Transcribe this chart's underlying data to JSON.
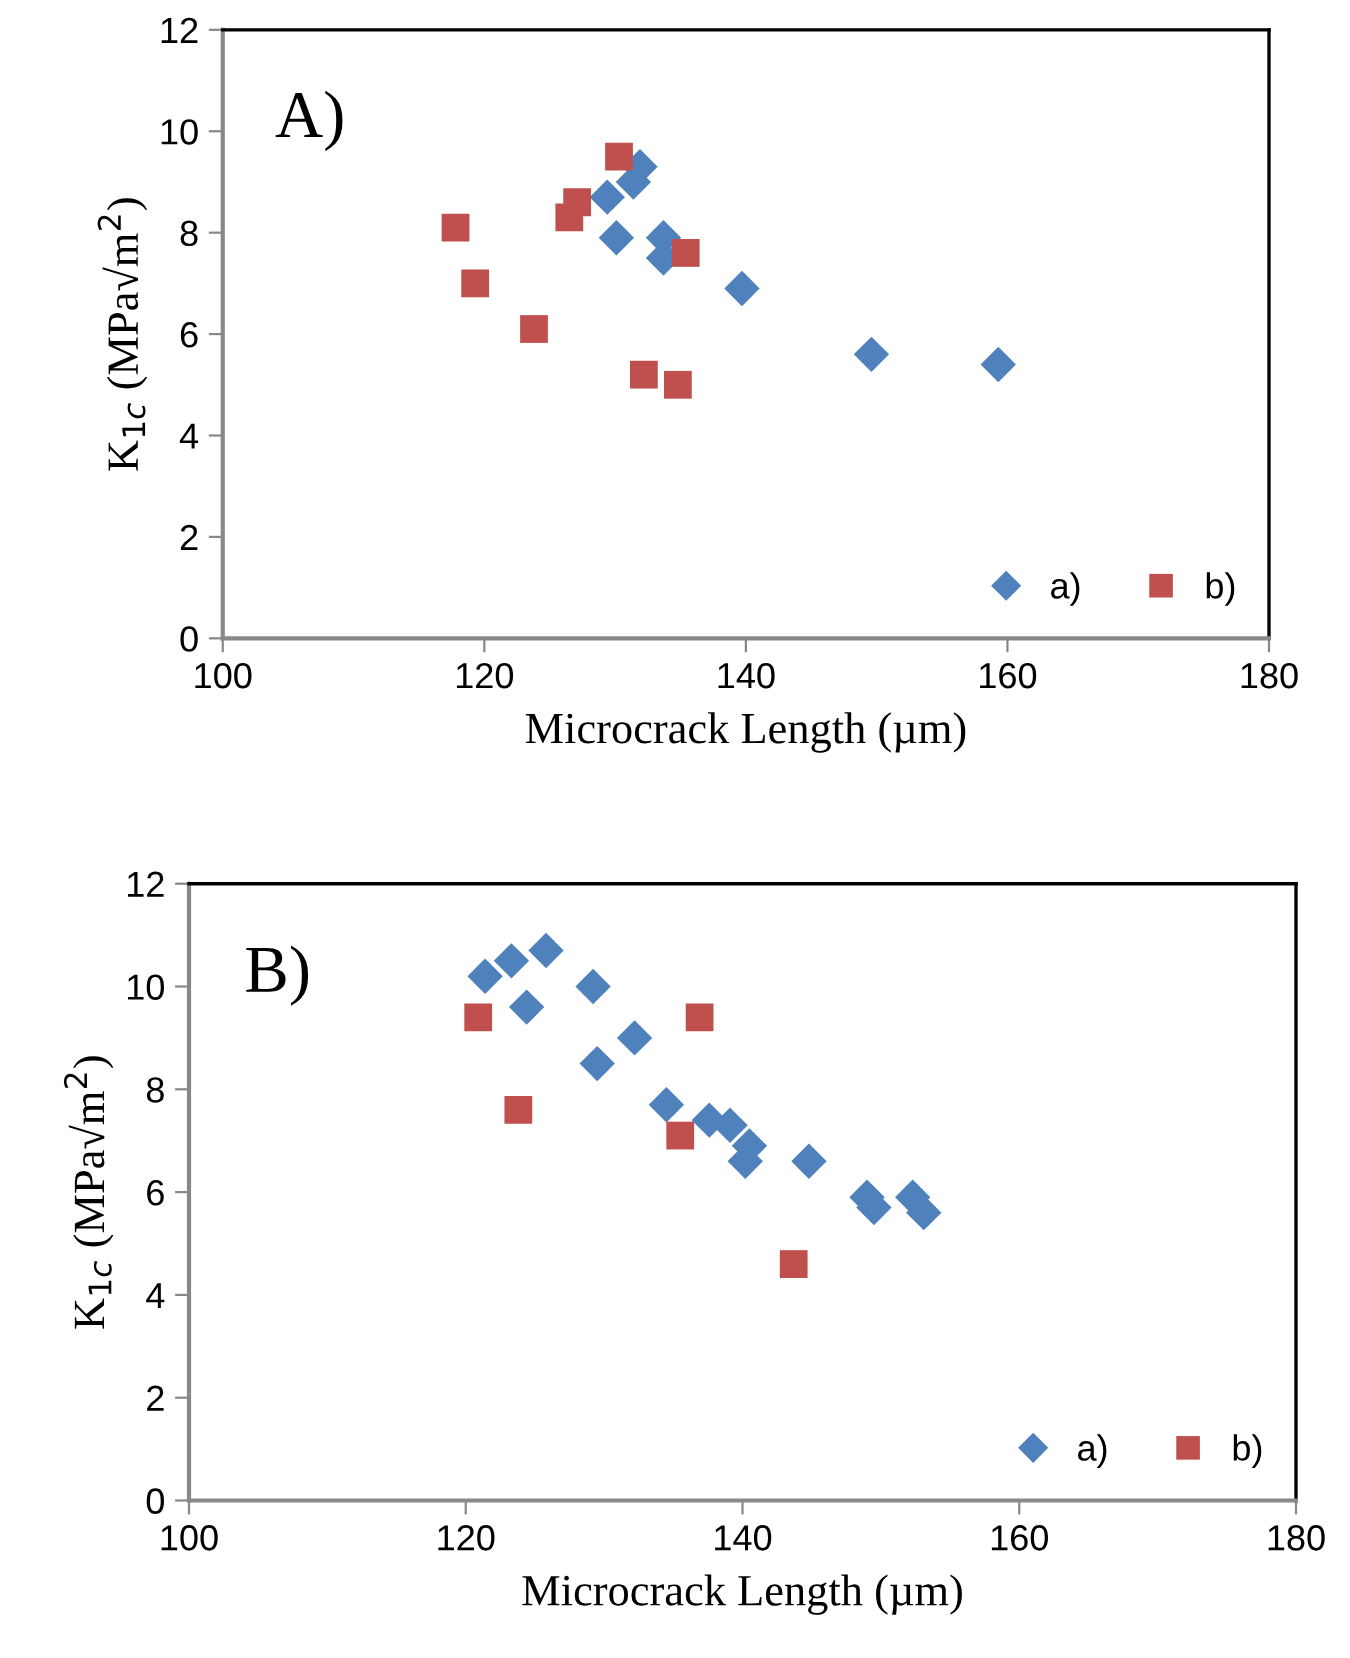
{
  "chart_data": [
    {
      "type": "scatter",
      "xlabel": "Microcrack Length (µm)",
      "ylabel": "K$_{1c}$ (MPa√m$^{2}$)",
      "annotations": [
        "A)"
      ],
      "xlim": [
        100,
        180
      ],
      "xticks": [
        100,
        120,
        140,
        160,
        180
      ],
      "ylim": [
        0,
        12
      ],
      "yticks": [
        0,
        2,
        4,
        6,
        8,
        10,
        12
      ],
      "legend": "bottom right",
      "grid": false,
      "series": [
        {
          "name": "a)",
          "color": "#4f81bd",
          "marker": "diamond",
          "x": [
            131.9,
            131.4,
            129.4,
            130.1,
            133.7,
            133.7,
            139.7,
            149.6,
            159.3
          ],
          "values": [
            9.3,
            9.0,
            8.7,
            7.9,
            7.9,
            7.5,
            6.9,
            5.6,
            5.4
          ]
        },
        {
          "name": "b)",
          "color": "#c0504d",
          "marker": "square",
          "x": [
            130.3,
            127.1,
            126.5,
            117.8,
            119.3,
            123.8,
            135.4,
            132.2,
            134.8
          ],
          "values": [
            9.5,
            8.6,
            8.3,
            8.1,
            7.0,
            6.1,
            7.6,
            5.2,
            5.0
          ]
        }
      ]
    },
    {
      "type": "scatter",
      "xlabel": "Microcrack Length (µm)",
      "ylabel": "K$_{1c}$ (MPa√m$^{2}$)",
      "annotations": [
        "B)"
      ],
      "xlim": [
        100,
        180
      ],
      "xticks": [
        100,
        120,
        140,
        160,
        180
      ],
      "ylim": [
        0,
        12
      ],
      "yticks": [
        0,
        2,
        4,
        6,
        8,
        10,
        12
      ],
      "legend": "bottom right",
      "grid": false,
      "series": [
        {
          "name": "a)",
          "color": "#4f81bd",
          "marker": "diamond",
          "x": [
            121.4,
            123.3,
            125.8,
            129.2,
            124.4,
            132.2,
            129.5,
            134.5,
            137.6,
            139.1,
            140.5,
            140.2,
            144.8,
            149.0,
            149.5,
            152.3,
            153.1
          ],
          "values": [
            10.2,
            10.5,
            10.7,
            10.0,
            9.6,
            9.0,
            8.5,
            7.7,
            7.4,
            7.3,
            6.9,
            6.6,
            6.6,
            5.9,
            5.7,
            5.9,
            5.6
          ]
        },
        {
          "name": "b)",
          "color": "#c0504d",
          "marker": "square",
          "x": [
            120.9,
            136.9,
            123.8,
            135.5,
            143.7
          ],
          "values": [
            9.4,
            9.4,
            7.6,
            7.1,
            4.6
          ]
        }
      ]
    }
  ]
}
